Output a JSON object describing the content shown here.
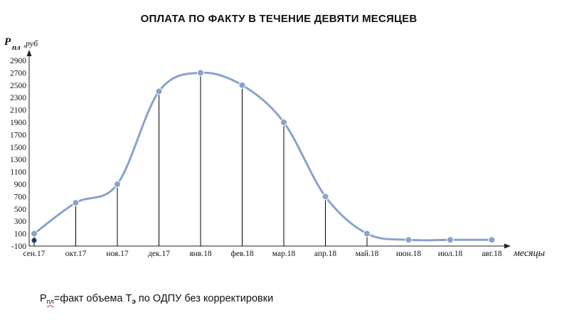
{
  "chart_data": {
    "type": "line",
    "title": "ОПЛАТА ПО ФАКТУ В ТЕЧЕНИЕ ДЕВЯТИ МЕСЯЦЕВ",
    "ylabel": {
      "main": "P",
      "sub": "пл",
      "unit": ",руб"
    },
    "xlabel": "месяцы",
    "categories": [
      "сен.17",
      "окт.17",
      "ноя.17",
      "дек.17",
      "янв.18",
      "фев.18",
      "мар.18",
      "апр.18",
      "май.18",
      "июн.18",
      "июл.18",
      "авг.18"
    ],
    "series": [
      {
        "values": [
          100,
          600,
          900,
          2400,
          2700,
          2500,
          1900,
          700,
          100,
          0,
          0,
          0
        ]
      }
    ],
    "yticks": [
      -100,
      100,
      300,
      500,
      700,
      900,
      1100,
      1300,
      1500,
      1700,
      1900,
      2100,
      2300,
      2500,
      2700,
      2900
    ],
    "ylim": [
      -100,
      2900
    ],
    "line_color": "#8aa3cb",
    "marker_color": "#8aa3cb",
    "drop_line_color": "#000000",
    "smooth": true,
    "grid": false,
    "legend": "none"
  },
  "footnote": {
    "p": "P",
    "p_sub": "пл",
    "text1": "=факт объема Т",
    "t_sub": "э",
    "text2": " по ОДПУ без корректировки"
  }
}
